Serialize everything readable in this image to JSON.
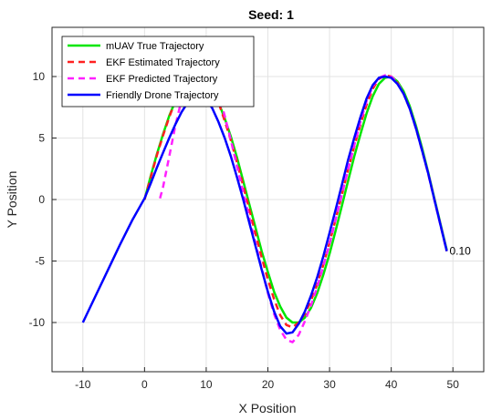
{
  "chart_data": {
    "type": "line",
    "title": "Seed: 1",
    "xlabel": "X Position",
    "ylabel": "Y Position",
    "xlim": [
      -15,
      55
    ],
    "ylim": [
      -14,
      14
    ],
    "xticks": [
      -10,
      0,
      10,
      20,
      30,
      40,
      50
    ],
    "yticks": [
      -10,
      -5,
      0,
      5,
      10
    ],
    "grid": true,
    "legend_position": "top-left",
    "annotation": {
      "text": "0.10",
      "x": 49,
      "y": -4.2
    },
    "series": [
      {
        "name": "mUAV True Trajectory",
        "color": "#00e600",
        "style": "solid",
        "x": [
          0,
          1,
          2,
          3,
          4,
          5,
          6,
          7,
          8,
          9,
          10,
          11,
          12,
          13,
          14,
          15,
          16,
          17,
          18,
          19,
          20,
          21,
          22,
          23,
          24,
          25,
          26,
          27,
          28,
          29,
          30,
          31,
          32,
          33,
          34,
          35,
          36,
          37,
          38,
          39,
          40,
          41,
          42,
          43,
          44,
          45,
          46,
          47,
          48,
          49
        ],
        "y": [
          0,
          1.9,
          3.7,
          5.3,
          6.8,
          8.0,
          9.0,
          9.6,
          9.9,
          9.9,
          9.6,
          8.9,
          7.9,
          6.6,
          5.1,
          3.4,
          1.5,
          -0.4,
          -2.3,
          -4.2,
          -5.9,
          -7.5,
          -8.7,
          -9.6,
          -10.0,
          -10.0,
          -9.6,
          -8.8,
          -7.6,
          -6.1,
          -4.4,
          -2.5,
          -0.5,
          1.5,
          3.5,
          5.3,
          7.0,
          8.4,
          9.4,
          9.9,
          10.0,
          9.6,
          8.8,
          7.6,
          6.0,
          4.2,
          2.2,
          0.1,
          -2.0,
          -4.1
        ]
      },
      {
        "name": "EKF Estimated Trajectory",
        "color": "#ff2020",
        "style": "dashed",
        "x": [
          0,
          1,
          2,
          3,
          4,
          5,
          6,
          7,
          8,
          9,
          10,
          11,
          12,
          13,
          14,
          15,
          16,
          17,
          18,
          19,
          20,
          21,
          22,
          23,
          24,
          25,
          26,
          27,
          28,
          29,
          30,
          31,
          32,
          33,
          34,
          35,
          36,
          37,
          38,
          39,
          40,
          41,
          42,
          43,
          44,
          45,
          46,
          47,
          48,
          49
        ],
        "y": [
          0,
          1.8,
          3.6,
          5.2,
          6.7,
          8.0,
          9.0,
          9.7,
          10.0,
          10.0,
          9.7,
          9.0,
          7.9,
          6.4,
          4.8,
          3.0,
          1.1,
          -0.8,
          -2.8,
          -4.7,
          -6.5,
          -8.1,
          -9.4,
          -10.2,
          -10.4,
          -10.0,
          -9.3,
          -8.2,
          -6.9,
          -5.3,
          -3.5,
          -1.6,
          0.4,
          2.4,
          4.3,
          6.1,
          7.7,
          9.0,
          9.8,
          10.1,
          10.0,
          9.5,
          8.6,
          7.4,
          5.8,
          4.0,
          2.1,
          0.0,
          -2.1,
          -4.2
        ]
      },
      {
        "name": "EKF Predicted Trajectory",
        "color": "#ff20ff",
        "style": "dashed",
        "x": [
          2.5,
          3,
          4,
          5,
          6,
          7,
          8,
          9,
          10,
          11,
          12,
          13,
          14,
          15,
          16,
          17,
          18,
          19,
          20,
          21,
          22,
          23,
          24,
          25,
          26,
          27,
          28,
          29,
          30,
          31,
          32,
          33,
          34,
          35,
          36,
          37,
          38,
          39,
          40,
          41,
          42,
          43,
          44,
          45,
          46,
          47,
          48,
          49
        ],
        "y": [
          0.1,
          1.0,
          3.5,
          6.0,
          8.1,
          9.6,
          10.6,
          11.0,
          10.8,
          10.0,
          8.6,
          6.8,
          4.8,
          2.7,
          0.6,
          -1.5,
          -3.6,
          -5.6,
          -7.6,
          -9.3,
          -10.6,
          -11.4,
          -11.6,
          -11.0,
          -9.9,
          -8.6,
          -7.1,
          -5.4,
          -3.6,
          -1.6,
          0.4,
          2.4,
          4.4,
          6.3,
          8.0,
          9.2,
          9.9,
          10.1,
          10.0,
          9.5,
          8.6,
          7.4,
          5.8,
          4.0,
          2.1,
          0.0,
          -2.1,
          -4.2
        ]
      },
      {
        "name": "Friendly Drone Trajectory",
        "color": "#0000ff",
        "style": "solid",
        "x": [
          -10,
          -8,
          -6,
          -4,
          -2,
          0,
          1,
          2,
          3,
          4,
          5,
          6,
          7,
          8,
          9,
          10,
          11,
          12,
          13,
          14,
          15,
          16,
          17,
          18,
          19,
          20,
          21,
          22,
          23,
          24,
          25,
          26,
          27,
          28,
          29,
          30,
          31,
          32,
          33,
          34,
          35,
          36,
          37,
          38,
          39,
          40,
          41,
          42,
          43,
          44,
          45,
          46,
          47,
          48,
          49
        ],
        "y": [
          -10,
          -7.9,
          -5.8,
          -3.7,
          -1.7,
          0.1,
          1.3,
          2.6,
          3.8,
          5.0,
          6.1,
          7.1,
          7.9,
          8.4,
          8.5,
          8.2,
          7.4,
          6.3,
          5.0,
          3.5,
          1.8,
          0.0,
          -1.9,
          -3.8,
          -5.7,
          -7.5,
          -9.1,
          -10.3,
          -10.9,
          -10.8,
          -10.1,
          -9.1,
          -7.8,
          -6.3,
          -4.6,
          -2.7,
          -0.8,
          1.2,
          3.2,
          5.0,
          6.7,
          8.2,
          9.3,
          9.9,
          10.0,
          9.9,
          9.4,
          8.6,
          7.4,
          5.8,
          4.0,
          2.1,
          0.0,
          -2.1,
          -4.2
        ]
      }
    ]
  }
}
